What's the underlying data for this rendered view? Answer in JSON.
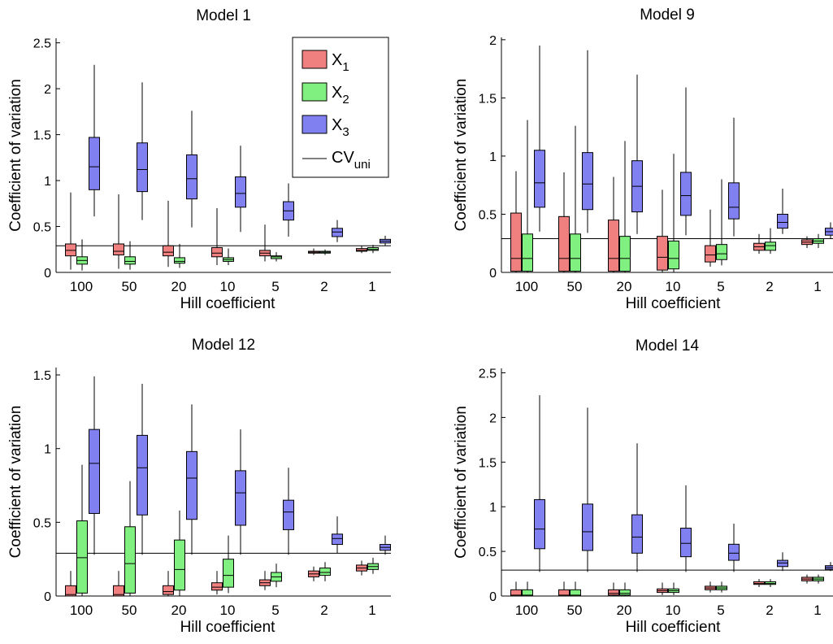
{
  "colors": {
    "x1": "#f08080",
    "x2": "#80f080",
    "x3": "#8080f0",
    "line": "#000000"
  },
  "legend": {
    "entries": [
      {
        "base": "X",
        "sub": "1",
        "series": "x1"
      },
      {
        "base": "X",
        "sub": "2",
        "series": "x2"
      },
      {
        "base": "X",
        "sub": "3",
        "series": "x3"
      },
      {
        "base": "CV",
        "sub": "uni",
        "series": "cv"
      }
    ]
  },
  "chart_data": [
    {
      "type": "box",
      "title": "Model 1",
      "xlabel": "Hill coefficient",
      "ylabel": "Coefficient of variation",
      "categories": [
        "100",
        "50",
        "20",
        "10",
        "5",
        "2",
        "1"
      ],
      "ylim": [
        0,
        2.55
      ],
      "yticks": [
        0,
        0.5,
        1,
        1.5,
        2,
        2.5
      ],
      "ytick_labels": [
        "0",
        "0.5",
        "1",
        "1.5",
        "2",
        "2.5"
      ],
      "cv_uni": 0.29,
      "legend": true,
      "series": [
        {
          "key": "x1",
          "boxes": [
            {
              "lw": 0.03,
              "q1": 0.18,
              "med": 0.24,
              "q3": 0.31,
              "uw": 0.87
            },
            {
              "lw": 0.04,
              "q1": 0.19,
              "med": 0.23,
              "q3": 0.31,
              "uw": 0.85
            },
            {
              "lw": 0.06,
              "q1": 0.18,
              "med": 0.22,
              "q3": 0.29,
              "uw": 0.78
            },
            {
              "lw": 0.08,
              "q1": 0.17,
              "med": 0.21,
              "q3": 0.27,
              "uw": 0.7
            },
            {
              "lw": 0.12,
              "q1": 0.18,
              "med": 0.21,
              "q3": 0.24,
              "uw": 0.52
            },
            {
              "lw": 0.19,
              "q1": 0.21,
              "med": 0.22,
              "q3": 0.23,
              "uw": 0.26
            },
            {
              "lw": 0.21,
              "q1": 0.23,
              "med": 0.24,
              "q3": 0.26,
              "uw": 0.29
            }
          ]
        },
        {
          "key": "x2",
          "boxes": [
            {
              "lw": 0.02,
              "q1": 0.09,
              "med": 0.13,
              "q3": 0.17,
              "uw": 0.36
            },
            {
              "lw": 0.03,
              "q1": 0.09,
              "med": 0.12,
              "q3": 0.17,
              "uw": 0.34
            },
            {
              "lw": 0.05,
              "q1": 0.1,
              "med": 0.12,
              "q3": 0.16,
              "uw": 0.31
            },
            {
              "lw": 0.08,
              "q1": 0.12,
              "med": 0.14,
              "q3": 0.16,
              "uw": 0.26
            },
            {
              "lw": 0.12,
              "q1": 0.15,
              "med": 0.17,
              "q3": 0.18,
              "uw": 0.22
            },
            {
              "lw": 0.19,
              "q1": 0.21,
              "med": 0.22,
              "q3": 0.23,
              "uw": 0.25
            },
            {
              "lw": 0.21,
              "q1": 0.24,
              "med": 0.25,
              "q3": 0.27,
              "uw": 0.3
            }
          ]
        },
        {
          "key": "x3",
          "boxes": [
            {
              "lw": 0.61,
              "q1": 0.9,
              "med": 1.15,
              "q3": 1.47,
              "uw": 2.26
            },
            {
              "lw": 0.57,
              "q1": 0.88,
              "med": 1.12,
              "q3": 1.41,
              "uw": 2.07
            },
            {
              "lw": 0.49,
              "q1": 0.8,
              "med": 1.02,
              "q3": 1.28,
              "uw": 1.76
            },
            {
              "lw": 0.44,
              "q1": 0.71,
              "med": 0.86,
              "q3": 1.04,
              "uw": 1.38
            },
            {
              "lw": 0.39,
              "q1": 0.57,
              "med": 0.67,
              "q3": 0.77,
              "uw": 0.97
            },
            {
              "lw": 0.33,
              "q1": 0.39,
              "med": 0.44,
              "q3": 0.48,
              "uw": 0.57
            },
            {
              "lw": 0.29,
              "q1": 0.32,
              "med": 0.34,
              "q3": 0.36,
              "uw": 0.4
            }
          ]
        }
      ]
    },
    {
      "type": "box",
      "title": "Model 9",
      "xlabel": "Hill coefficient",
      "ylabel": "Coefficient of variation",
      "categories": [
        "100",
        "50",
        "20",
        "10",
        "5",
        "2",
        "1"
      ],
      "ylim": [
        0,
        2.02
      ],
      "yticks": [
        0,
        0.5,
        1,
        1.5,
        2
      ],
      "ytick_labels": [
        "0",
        "0.5",
        "1",
        "1.5",
        "2"
      ],
      "cv_uni": 0.29,
      "legend": false,
      "series": [
        {
          "key": "x1",
          "boxes": [
            {
              "lw": 0.0,
              "q1": 0.01,
              "med": 0.12,
              "q3": 0.51,
              "uw": 0.87
            },
            {
              "lw": 0.0,
              "q1": 0.01,
              "med": 0.12,
              "q3": 0.48,
              "uw": 0.86
            },
            {
              "lw": 0.0,
              "q1": 0.01,
              "med": 0.12,
              "q3": 0.45,
              "uw": 0.82
            },
            {
              "lw": 0.0,
              "q1": 0.02,
              "med": 0.13,
              "q3": 0.31,
              "uw": 0.71
            },
            {
              "lw": 0.05,
              "q1": 0.09,
              "med": 0.15,
              "q3": 0.23,
              "uw": 0.54
            },
            {
              "lw": 0.16,
              "q1": 0.19,
              "med": 0.22,
              "q3": 0.25,
              "uw": 0.33
            },
            {
              "lw": 0.21,
              "q1": 0.24,
              "med": 0.26,
              "q3": 0.28,
              "uw": 0.31
            }
          ]
        },
        {
          "key": "x2",
          "boxes": [
            {
              "lw": 0.0,
              "q1": 0.01,
              "med": 0.12,
              "q3": 0.33,
              "uw": 1.31
            },
            {
              "lw": 0.0,
              "q1": 0.01,
              "med": 0.12,
              "q3": 0.33,
              "uw": 1.26
            },
            {
              "lw": 0.0,
              "q1": 0.01,
              "med": 0.12,
              "q3": 0.31,
              "uw": 1.13
            },
            {
              "lw": 0.0,
              "q1": 0.03,
              "med": 0.12,
              "q3": 0.27,
              "uw": 1.02
            },
            {
              "lw": 0.06,
              "q1": 0.11,
              "med": 0.16,
              "q3": 0.24,
              "uw": 0.8
            },
            {
              "lw": 0.16,
              "q1": 0.19,
              "med": 0.23,
              "q3": 0.26,
              "uw": 0.38
            },
            {
              "lw": 0.21,
              "q1": 0.25,
              "med": 0.27,
              "q3": 0.29,
              "uw": 0.33
            }
          ]
        },
        {
          "key": "x3",
          "boxes": [
            {
              "lw": 0.35,
              "q1": 0.56,
              "med": 0.77,
              "q3": 1.05,
              "uw": 1.95
            },
            {
              "lw": 0.34,
              "q1": 0.54,
              "med": 0.76,
              "q3": 1.03,
              "uw": 1.91
            },
            {
              "lw": 0.33,
              "q1": 0.52,
              "med": 0.74,
              "q3": 0.96,
              "uw": 1.7
            },
            {
              "lw": 0.32,
              "q1": 0.49,
              "med": 0.66,
              "q3": 0.86,
              "uw": 1.59
            },
            {
              "lw": 0.31,
              "q1": 0.46,
              "med": 0.56,
              "q3": 0.77,
              "uw": 1.33
            },
            {
              "lw": 0.33,
              "q1": 0.38,
              "med": 0.43,
              "q3": 0.5,
              "uw": 0.72
            },
            {
              "lw": 0.29,
              "q1": 0.32,
              "med": 0.35,
              "q3": 0.38,
              "uw": 0.43
            }
          ]
        }
      ]
    },
    {
      "type": "box",
      "title": "Model 12",
      "xlabel": "Hill coefficient",
      "ylabel": "Coefficient of variation",
      "categories": [
        "100",
        "50",
        "20",
        "10",
        "5",
        "2",
        "1"
      ],
      "ylim": [
        0,
        1.55
      ],
      "yticks": [
        0,
        0.5,
        1,
        1.5
      ],
      "ytick_labels": [
        "0",
        "0.5",
        "1",
        "1.5"
      ],
      "cv_uni": 0.29,
      "legend": false,
      "series": [
        {
          "key": "x1",
          "boxes": [
            {
              "lw": 0.0,
              "q1": 0.0,
              "med": 0.01,
              "q3": 0.07,
              "uw": 0.17
            },
            {
              "lw": 0.0,
              "q1": 0.0,
              "med": 0.01,
              "q3": 0.07,
              "uw": 0.17
            },
            {
              "lw": 0.0,
              "q1": 0.01,
              "med": 0.03,
              "q3": 0.07,
              "uw": 0.17
            },
            {
              "lw": 0.01,
              "q1": 0.04,
              "med": 0.06,
              "q3": 0.09,
              "uw": 0.17
            },
            {
              "lw": 0.04,
              "q1": 0.07,
              "med": 0.09,
              "q3": 0.11,
              "uw": 0.17
            },
            {
              "lw": 0.1,
              "q1": 0.13,
              "med": 0.15,
              "q3": 0.17,
              "uw": 0.2
            },
            {
              "lw": 0.14,
              "q1": 0.17,
              "med": 0.19,
              "q3": 0.21,
              "uw": 0.24
            }
          ]
        },
        {
          "key": "x2",
          "boxes": [
            {
              "lw": 0.0,
              "q1": 0.02,
              "med": 0.26,
              "q3": 0.51,
              "uw": 0.89
            },
            {
              "lw": 0.0,
              "q1": 0.02,
              "med": 0.22,
              "q3": 0.47,
              "uw": 0.78
            },
            {
              "lw": 0.0,
              "q1": 0.04,
              "med": 0.18,
              "q3": 0.38,
              "uw": 0.58
            },
            {
              "lw": 0.02,
              "q1": 0.06,
              "med": 0.14,
              "q3": 0.25,
              "uw": 0.41
            },
            {
              "lw": 0.06,
              "q1": 0.1,
              "med": 0.13,
              "q3": 0.16,
              "uw": 0.22
            },
            {
              "lw": 0.1,
              "q1": 0.14,
              "med": 0.16,
              "q3": 0.19,
              "uw": 0.23
            },
            {
              "lw": 0.15,
              "q1": 0.18,
              "med": 0.2,
              "q3": 0.22,
              "uw": 0.26
            }
          ]
        },
        {
          "key": "x3",
          "boxes": [
            {
              "lw": 0.28,
              "q1": 0.56,
              "med": 0.9,
              "q3": 1.13,
              "uw": 1.49
            },
            {
              "lw": 0.28,
              "q1": 0.55,
              "med": 0.87,
              "q3": 1.09,
              "uw": 1.44
            },
            {
              "lw": 0.28,
              "q1": 0.52,
              "med": 0.8,
              "q3": 0.98,
              "uw": 1.3
            },
            {
              "lw": 0.28,
              "q1": 0.48,
              "med": 0.7,
              "q3": 0.85,
              "uw": 1.13
            },
            {
              "lw": 0.28,
              "q1": 0.45,
              "med": 0.57,
              "q3": 0.65,
              "uw": 0.87
            },
            {
              "lw": 0.29,
              "q1": 0.35,
              "med": 0.39,
              "q3": 0.42,
              "uw": 0.54
            },
            {
              "lw": 0.28,
              "q1": 0.31,
              "med": 0.33,
              "q3": 0.35,
              "uw": 0.41
            }
          ]
        }
      ]
    },
    {
      "type": "box",
      "title": "Model 14",
      "xlabel": "Hill coefficient",
      "ylabel": "Coefficient of variation",
      "categories": [
        "100",
        "50",
        "20",
        "10",
        "5",
        "2",
        "1"
      ],
      "ylim": [
        0,
        2.55
      ],
      "yticks": [
        0,
        0.5,
        1,
        1.5,
        2,
        2.5
      ],
      "ytick_labels": [
        "0",
        "0.5",
        "1",
        "1.5",
        "2",
        "2.5"
      ],
      "cv_uni": 0.29,
      "legend": false,
      "series": [
        {
          "key": "x1",
          "boxes": [
            {
              "lw": 0.0,
              "q1": 0.0,
              "med": 0.01,
              "q3": 0.07,
              "uw": 0.16
            },
            {
              "lw": 0.0,
              "q1": 0.0,
              "med": 0.01,
              "q3": 0.07,
              "uw": 0.16
            },
            {
              "lw": 0.0,
              "q1": 0.01,
              "med": 0.03,
              "q3": 0.07,
              "uw": 0.15
            },
            {
              "lw": 0.01,
              "q1": 0.04,
              "med": 0.06,
              "q3": 0.08,
              "uw": 0.15
            },
            {
              "lw": 0.04,
              "q1": 0.07,
              "med": 0.09,
              "q3": 0.11,
              "uw": 0.16
            },
            {
              "lw": 0.1,
              "q1": 0.13,
              "med": 0.14,
              "q3": 0.16,
              "uw": 0.19
            },
            {
              "lw": 0.14,
              "q1": 0.17,
              "med": 0.19,
              "q3": 0.21,
              "uw": 0.24
            }
          ]
        },
        {
          "key": "x2",
          "boxes": [
            {
              "lw": 0.0,
              "q1": 0.0,
              "med": 0.01,
              "q3": 0.07,
              "uw": 0.16
            },
            {
              "lw": 0.0,
              "q1": 0.0,
              "med": 0.01,
              "q3": 0.07,
              "uw": 0.16
            },
            {
              "lw": 0.0,
              "q1": 0.01,
              "med": 0.03,
              "q3": 0.07,
              "uw": 0.15
            },
            {
              "lw": 0.01,
              "q1": 0.04,
              "med": 0.06,
              "q3": 0.08,
              "uw": 0.15
            },
            {
              "lw": 0.04,
              "q1": 0.07,
              "med": 0.09,
              "q3": 0.11,
              "uw": 0.16
            },
            {
              "lw": 0.1,
              "q1": 0.13,
              "med": 0.14,
              "q3": 0.16,
              "uw": 0.19
            },
            {
              "lw": 0.14,
              "q1": 0.17,
              "med": 0.19,
              "q3": 0.21,
              "uw": 0.24
            }
          ]
        },
        {
          "key": "x3",
          "boxes": [
            {
              "lw": 0.27,
              "q1": 0.53,
              "med": 0.75,
              "q3": 1.08,
              "uw": 2.25
            },
            {
              "lw": 0.27,
              "q1": 0.51,
              "med": 0.72,
              "q3": 1.03,
              "uw": 2.11
            },
            {
              "lw": 0.27,
              "q1": 0.48,
              "med": 0.66,
              "q3": 0.91,
              "uw": 1.71
            },
            {
              "lw": 0.27,
              "q1": 0.44,
              "med": 0.59,
              "q3": 0.76,
              "uw": 1.24
            },
            {
              "lw": 0.27,
              "q1": 0.4,
              "med": 0.48,
              "q3": 0.58,
              "uw": 0.81
            },
            {
              "lw": 0.28,
              "q1": 0.33,
              "med": 0.37,
              "q3": 0.4,
              "uw": 0.49
            },
            {
              "lw": 0.28,
              "q1": 0.3,
              "med": 0.32,
              "q3": 0.34,
              "uw": 0.38
            }
          ]
        }
      ]
    }
  ]
}
